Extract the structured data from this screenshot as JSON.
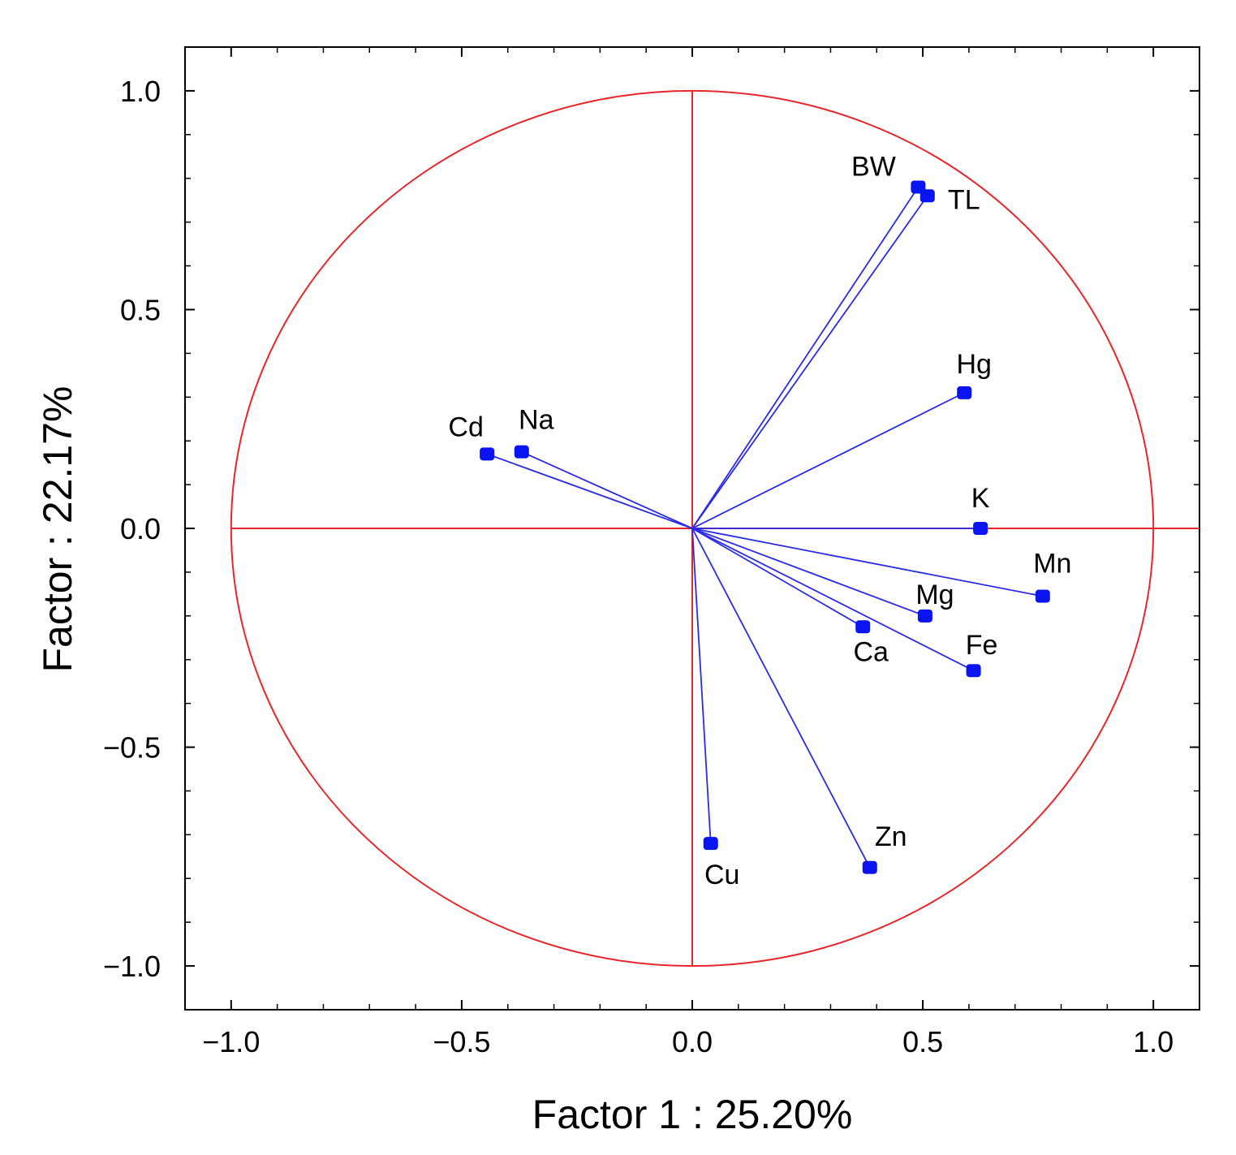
{
  "chart_data": {
    "type": "scatter",
    "subtype": "pca-correlation-circle",
    "title": "",
    "xlabel": "Factor 1 : 25.20%",
    "ylabel": "Factor : 22.17%",
    "xlim": [
      -1.1,
      1.1
    ],
    "ylim": [
      -1.1,
      1.1
    ],
    "xticks": [
      -1.0,
      -0.5,
      0.0,
      0.5,
      1.0
    ],
    "yticks": [
      -1.0,
      -0.5,
      0.0,
      0.5,
      1.0
    ],
    "xtick_labels": [
      "−1.0",
      "−0.5",
      "0.0",
      "0.5",
      "1.0"
    ],
    "ytick_labels": [
      "−1.0",
      "−0.5",
      "0.0",
      "0.5",
      "1.0"
    ],
    "minor_tick_step": 0.1,
    "grid": false,
    "unit_circle": true,
    "colors": {
      "circle": "#e8262a",
      "vectors": "#2b2be6",
      "points": "#0a14f0",
      "frame": "#000000"
    },
    "points": [
      {
        "label": "BW",
        "x": 0.49,
        "y": 0.78
      },
      {
        "label": "TL",
        "x": 0.51,
        "y": 0.76
      },
      {
        "label": "Hg",
        "x": 0.59,
        "y": 0.31
      },
      {
        "label": "Cd",
        "x": -0.445,
        "y": 0.17
      },
      {
        "label": "Na",
        "x": -0.37,
        "y": 0.175
      },
      {
        "label": "K",
        "x": 0.625,
        "y": 0.0
      },
      {
        "label": "Mn",
        "x": 0.76,
        "y": -0.155
      },
      {
        "label": "Mg",
        "x": 0.505,
        "y": -0.2
      },
      {
        "label": "Ca",
        "x": 0.37,
        "y": -0.225
      },
      {
        "label": "Fe",
        "x": 0.61,
        "y": -0.325
      },
      {
        "label": "Zn",
        "x": 0.385,
        "y": -0.775
      },
      {
        "label": "Cu",
        "x": 0.04,
        "y": -0.72
      }
    ]
  }
}
